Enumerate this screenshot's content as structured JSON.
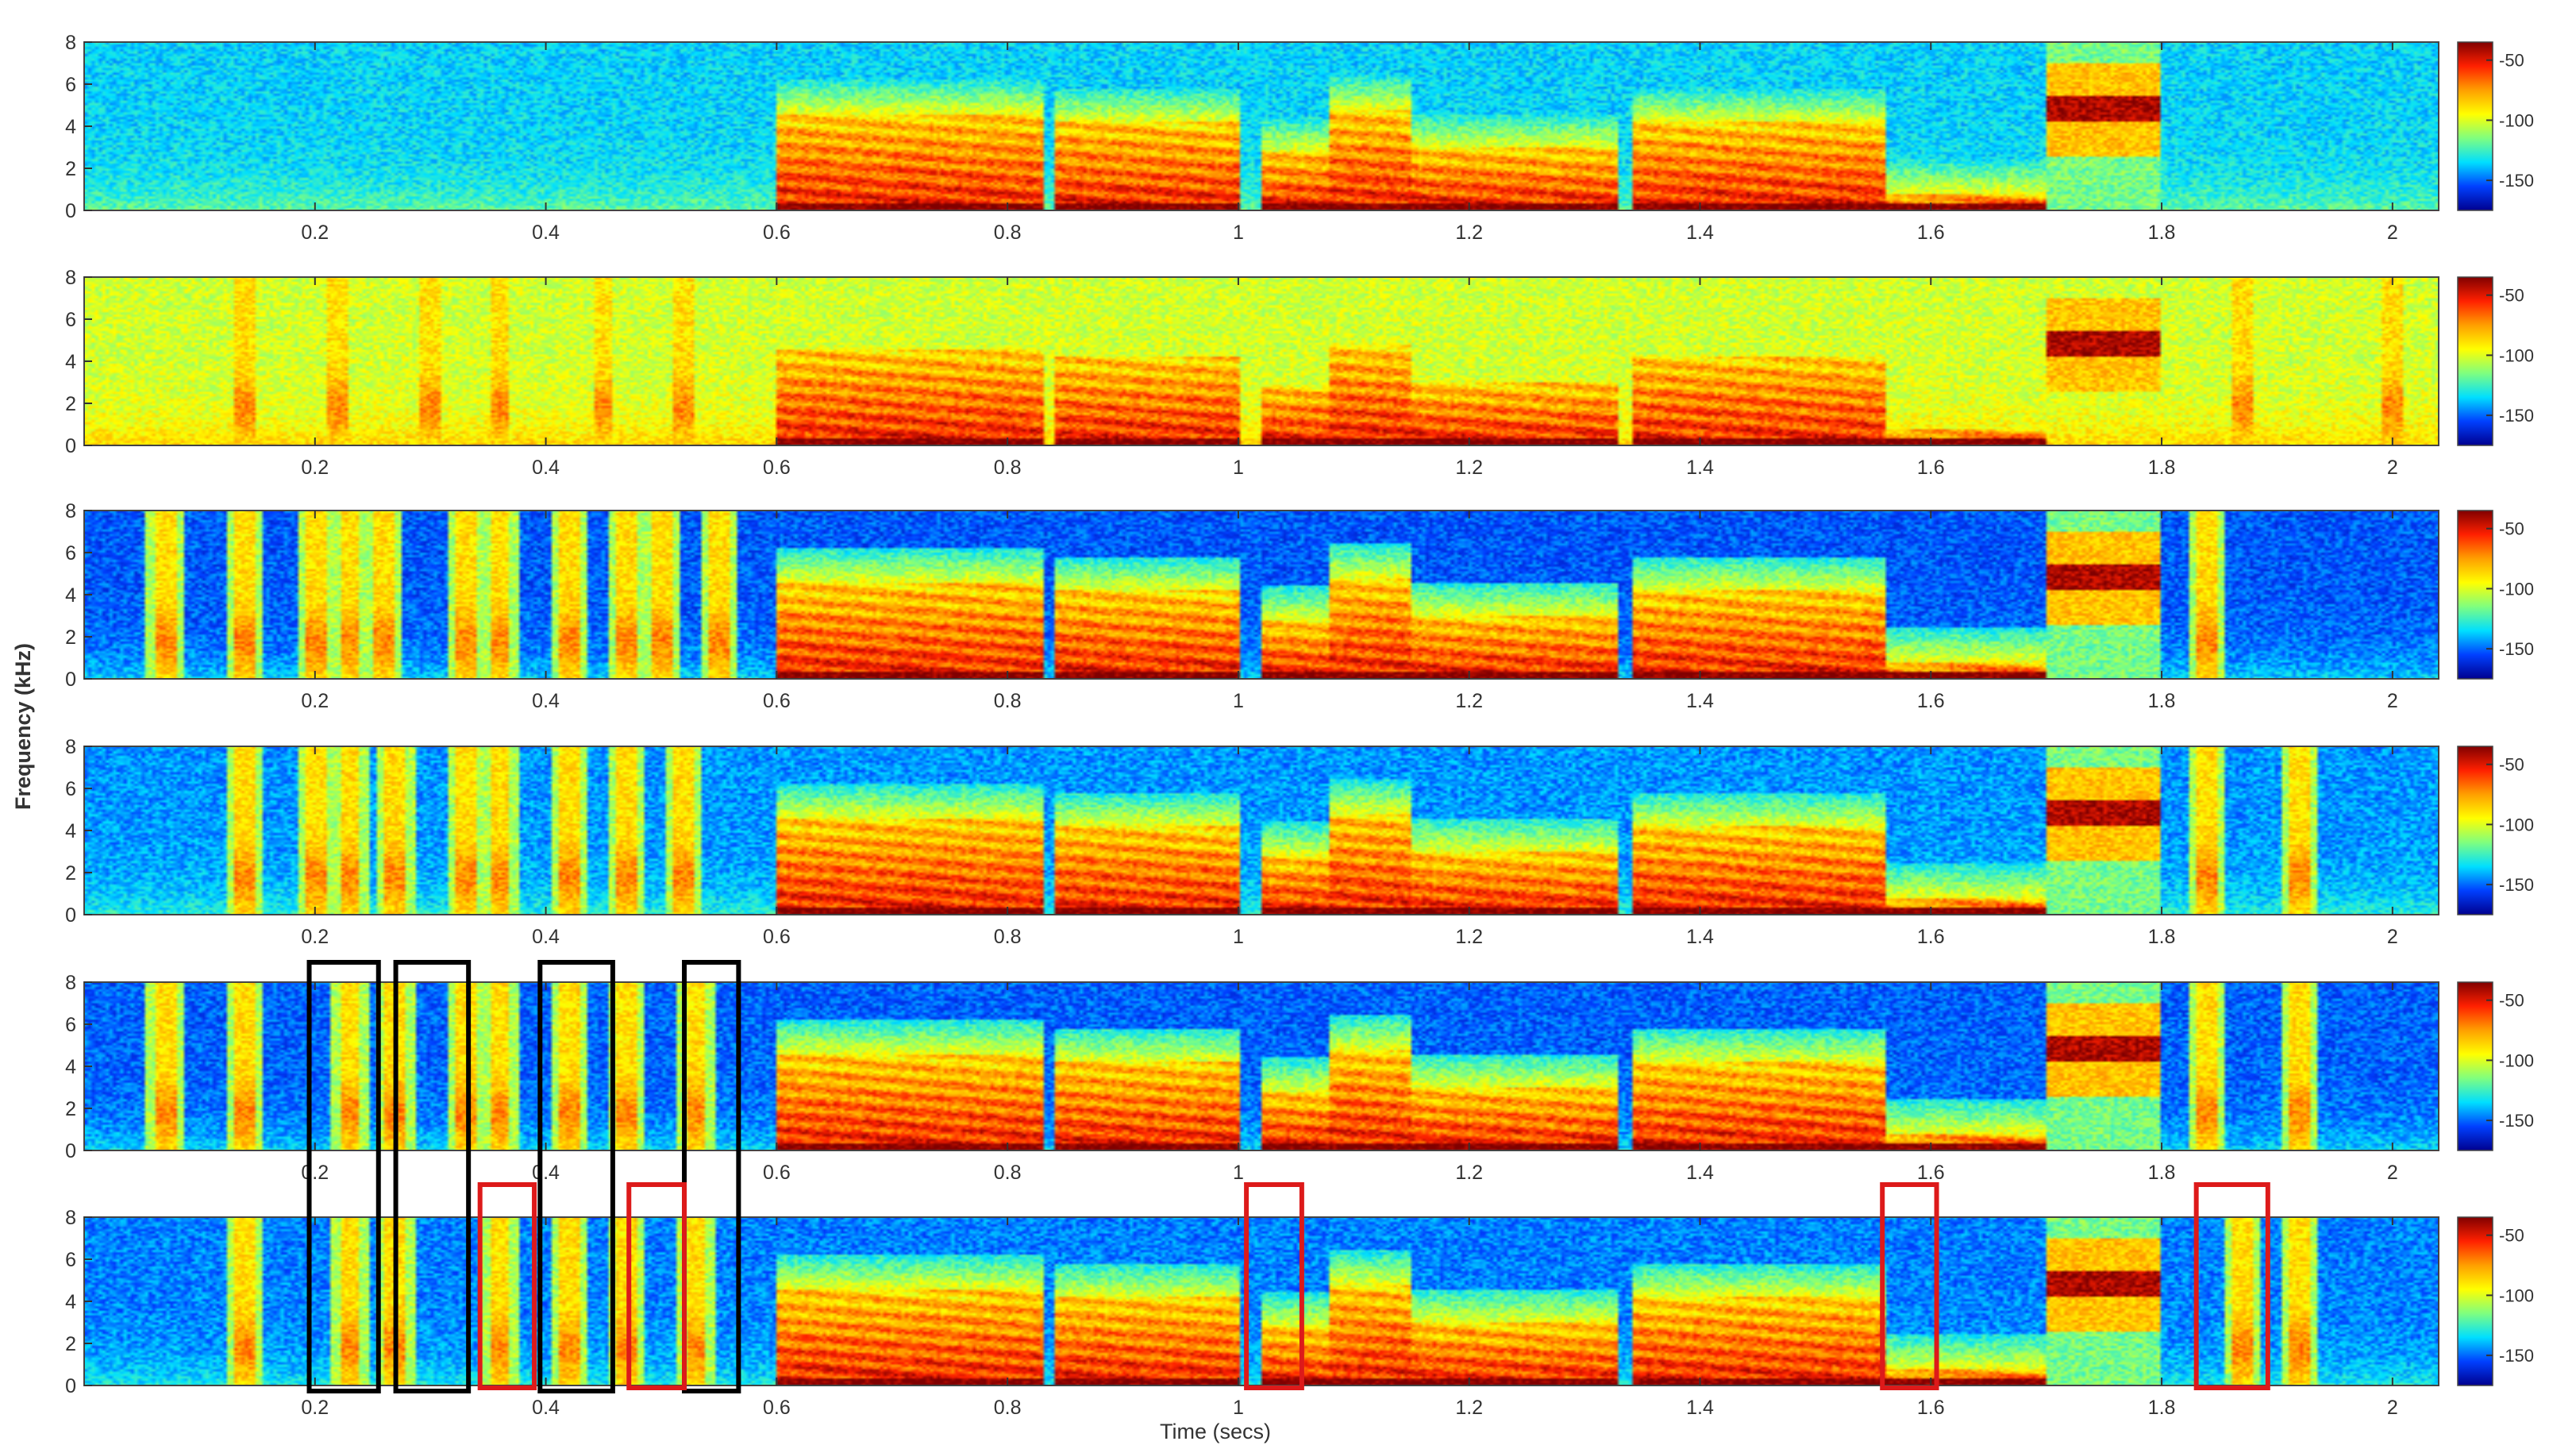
{
  "chart_data": {
    "type": "heatmap",
    "subtype": "spectrogram-stack",
    "xlabel": "Time (secs)",
    "ylabel": "Frequency (kHz)",
    "xlim": [
      0.0,
      2.04
    ],
    "ylim": [
      0,
      8
    ],
    "x_ticks": [
      0.2,
      0.4,
      0.6,
      0.8,
      1,
      1.2,
      1.4,
      1.6,
      1.8,
      2
    ],
    "x_tick_labels": [
      "0.2",
      "0.4",
      "0.6",
      "0.8",
      "1",
      "1.2",
      "1.4",
      "1.6",
      "1.8",
      "2"
    ],
    "y_ticks": [
      0,
      2,
      4,
      6,
      8
    ],
    "y_tick_labels": [
      "0",
      "2",
      "4",
      "6",
      "8"
    ],
    "colorbar": {
      "ticks": [
        -50,
        -100,
        -150
      ],
      "tick_labels": [
        "-50",
        "-100",
        "-150"
      ],
      "colormap": "jet",
      "colors": [
        "#00008f",
        "#0040ff",
        "#00dfff",
        "#7fff7f",
        "#ffff00",
        "#ff9f00",
        "#ff2000",
        "#800000"
      ]
    },
    "speech_segments": [
      {
        "start": 0.6,
        "end": 0.83,
        "top_khz": 4.6
      },
      {
        "start": 0.84,
        "end": 1.0,
        "top_khz": 4.2
      },
      {
        "start": 1.02,
        "end": 1.08,
        "top_khz": 2.8
      },
      {
        "start": 1.08,
        "end": 1.15,
        "top_khz": 4.8
      },
      {
        "start": 1.15,
        "end": 1.33,
        "top_khz": 3.0
      },
      {
        "start": 1.34,
        "end": 1.56,
        "top_khz": 4.2
      },
      {
        "start": 1.56,
        "end": 1.7,
        "top_khz": 0.8
      }
    ],
    "tone_burst": {
      "start": 1.7,
      "end": 1.8,
      "center_khz": 4.8
    },
    "panels": [
      {
        "id": 1,
        "background_level": 0.28,
        "pulses": []
      },
      {
        "id": 2,
        "background_level": 0.52,
        "pulses": [
          0.14,
          0.22,
          0.3,
          0.36,
          0.45,
          0.52,
          1.87,
          2.0
        ]
      },
      {
        "id": 3,
        "background_level": 0.16,
        "pulses": [
          0.07,
          0.14,
          0.2,
          0.23,
          0.26,
          0.33,
          0.36,
          0.42,
          0.47,
          0.5,
          0.55,
          1.84
        ]
      },
      {
        "id": 4,
        "background_level": 0.22,
        "pulses": [
          0.14,
          0.2,
          0.23,
          0.27,
          0.33,
          0.36,
          0.42,
          0.47,
          0.52,
          1.84,
          1.92
        ]
      },
      {
        "id": 5,
        "background_level": 0.17,
        "pulses": [
          0.07,
          0.14,
          0.23,
          0.27,
          0.33,
          0.36,
          0.42,
          0.47,
          0.53,
          1.84,
          1.92
        ]
      },
      {
        "id": 6,
        "background_level": 0.2,
        "pulses": [
          0.14,
          0.23,
          0.27,
          0.36,
          0.42,
          0.47,
          0.53,
          1.87,
          1.92
        ]
      }
    ],
    "annotations": {
      "black_boxes": [
        {
          "t_start": 0.195,
          "t_end": 0.255
        },
        {
          "t_start": 0.27,
          "t_end": 0.333
        },
        {
          "t_start": 0.395,
          "t_end": 0.458
        },
        {
          "t_start": 0.52,
          "t_end": 0.567
        }
      ],
      "red_boxes": [
        {
          "t_start": 0.343,
          "t_end": 0.39
        },
        {
          "t_start": 0.472,
          "t_end": 0.52
        },
        {
          "t_start": 1.007,
          "t_end": 1.055
        },
        {
          "t_start": 1.558,
          "t_end": 1.605
        },
        {
          "t_start": 1.83,
          "t_end": 1.892
        }
      ]
    }
  }
}
